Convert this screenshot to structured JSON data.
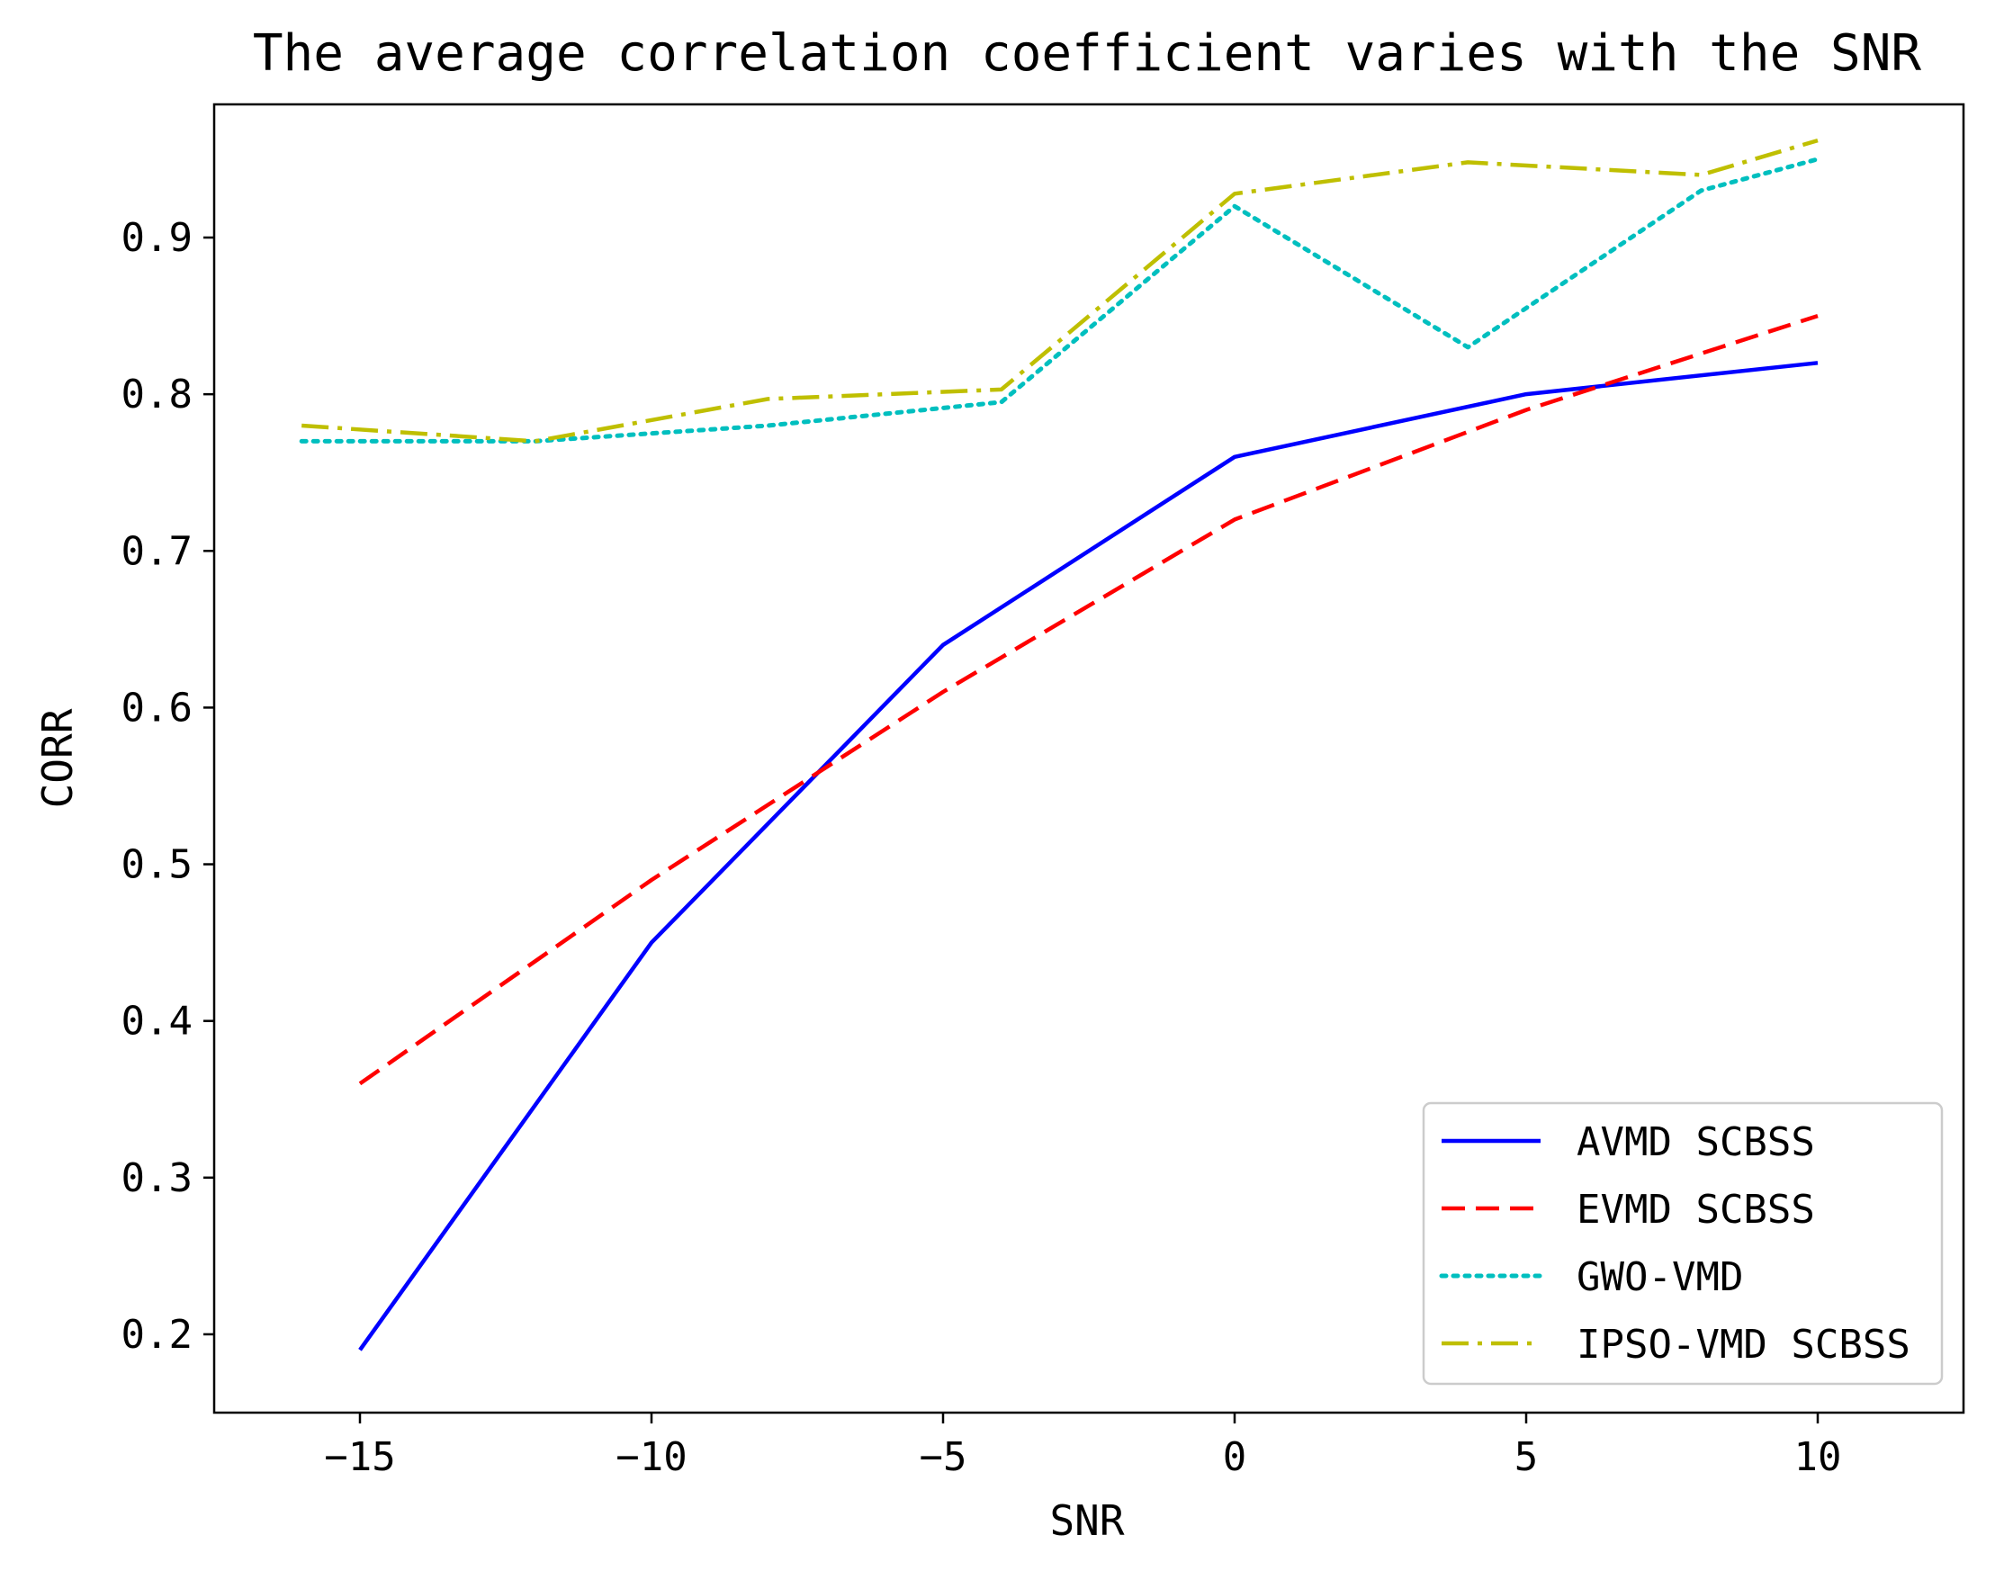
{
  "chart_data": {
    "type": "line",
    "title": "The average correlation coefficient varies with the SNR",
    "xlabel": "SNR",
    "ylabel": "CORR",
    "xlim": [
      -17.5,
      12.5
    ],
    "ylim": [
      0.15,
      0.985
    ],
    "xticks": [
      -15,
      -10,
      -5,
      0,
      5,
      10
    ],
    "xtick_labels": [
      "−15",
      "−10",
      "−5",
      "0",
      "5",
      "10"
    ],
    "yticks": [
      0.2,
      0.3,
      0.4,
      0.5,
      0.6,
      0.7,
      0.8,
      0.9
    ],
    "ytick_labels": [
      "0.2",
      "0.3",
      "0.4",
      "0.5",
      "0.6",
      "0.7",
      "0.8",
      "0.9"
    ],
    "grid": false,
    "legend_position": "bottom-right",
    "series": [
      {
        "name": "AVMD SCBSS",
        "color": "#0000ff",
        "style": "solid",
        "x": [
          -15,
          -10,
          -5,
          0,
          5,
          10
        ],
        "y": [
          0.19,
          0.45,
          0.64,
          0.76,
          0.8,
          0.82
        ]
      },
      {
        "name": "EVMD SCBSS",
        "color": "#ff0000",
        "style": "dashed",
        "x": [
          -15,
          -10,
          -5,
          0,
          5,
          10
        ],
        "y": [
          0.36,
          0.49,
          0.61,
          0.72,
          0.79,
          0.85
        ]
      },
      {
        "name": "GWO-VMD",
        "color": "#00bfbf",
        "style": "dotted",
        "x": [
          -16,
          -12,
          -8,
          -4,
          0,
          4,
          8,
          10
        ],
        "y": [
          0.77,
          0.77,
          0.78,
          0.795,
          0.92,
          0.83,
          0.93,
          0.95
        ]
      },
      {
        "name": "IPSO-VMD SCBSS",
        "color": "#bfbf00",
        "style": "dashdot",
        "x": [
          -16,
          -12,
          -8,
          -4,
          0,
          4,
          8,
          10
        ],
        "y": [
          0.78,
          0.77,
          0.797,
          0.803,
          0.928,
          0.948,
          0.94,
          0.962
        ]
      }
    ]
  }
}
